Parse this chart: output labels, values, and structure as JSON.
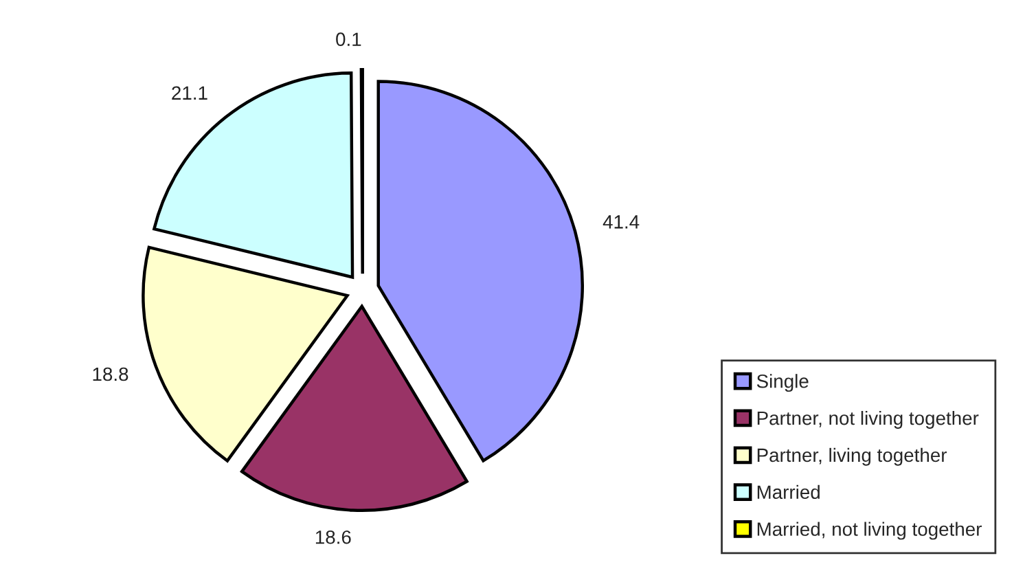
{
  "chart_data": {
    "type": "pie",
    "categories": [
      "Single",
      "Partner, not living together",
      "Partner, living together",
      "Married",
      "Married, not living together"
    ],
    "values": [
      41.4,
      18.6,
      18.8,
      21.1,
      0.1
    ],
    "colors": [
      "#9999ff",
      "#993366",
      "#ffffcc",
      "#ccffff",
      "#ffff00"
    ],
    "data_labels": true,
    "legend": "bottom right"
  }
}
